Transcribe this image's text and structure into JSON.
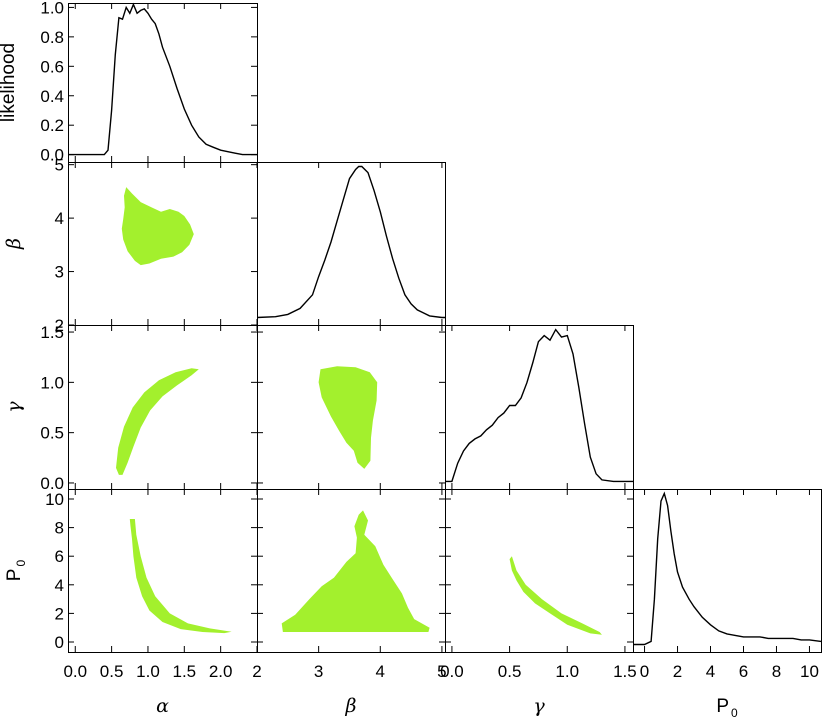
{
  "chart_data": {
    "type": "corner",
    "parameters": [
      {
        "key": "alpha",
        "label": "α",
        "range": [
          -0.1,
          2.5
        ],
        "ticks": [
          {
            "v": 0.0,
            "t": "0.0"
          },
          {
            "v": 0.5,
            "t": "0.5"
          },
          {
            "v": 1.0,
            "t": "1.0"
          },
          {
            "v": 1.5,
            "t": "1.5"
          },
          {
            "v": 2.0,
            "t": "2.0"
          }
        ]
      },
      {
        "key": "beta",
        "label": "β",
        "range": [
          2.0,
          5.05
        ],
        "ticks": [
          {
            "v": 3,
            "t": "3"
          },
          {
            "v": 4,
            "t": "4"
          },
          {
            "v": 5,
            "t": "5"
          },
          {
            "v": 2,
            "t": "2"
          }
        ]
      },
      {
        "key": "gamma",
        "label": "γ",
        "range": [
          -0.06,
          1.57
        ],
        "ticks": [
          {
            "v": 0.0,
            "t": "0.0"
          },
          {
            "v": 0.5,
            "t": "0.5"
          },
          {
            "v": 1.0,
            "t": "1.0"
          },
          {
            "v": 1.5,
            "t": "1.5"
          }
        ]
      },
      {
        "key": "P0",
        "label": "P",
        "label_sub": "0",
        "range": [
          -0.7,
          10.7
        ],
        "ticks": [
          {
            "v": 0,
            "t": "0"
          },
          {
            "v": 2,
            "t": "2"
          },
          {
            "v": 4,
            "t": "4"
          },
          {
            "v": 6,
            "t": "6"
          },
          {
            "v": 8,
            "t": "8"
          },
          {
            "v": 10,
            "t": "10"
          }
        ]
      }
    ],
    "likelihood_axis": {
      "label": "likelihood",
      "range": [
        -0.05,
        1.03
      ],
      "ticks": [
        {
          "v": 0.0,
          "t": "0.0"
        },
        {
          "v": 0.2,
          "t": "0.2"
        },
        {
          "v": 0.4,
          "t": "0.4"
        },
        {
          "v": 0.6,
          "t": "0.6"
        },
        {
          "v": 0.8,
          "t": "0.8"
        },
        {
          "v": 1.0,
          "t": "1.0"
        }
      ]
    },
    "marginals": [
      {
        "param": "alpha",
        "x": [
          -0.1,
          0.4,
          0.45,
          0.5,
          0.55,
          0.6,
          0.65,
          0.7,
          0.75,
          0.8,
          0.85,
          0.9,
          0.95,
          1.0,
          1.05,
          1.1,
          1.15,
          1.2,
          1.3,
          1.4,
          1.5,
          1.6,
          1.7,
          1.8,
          1.9,
          2.0,
          2.1,
          2.2,
          2.3,
          2.5
        ],
        "y": [
          0.0,
          0.0,
          0.03,
          0.3,
          0.68,
          0.93,
          0.92,
          1.0,
          0.96,
          1.02,
          0.96,
          0.98,
          0.99,
          0.96,
          0.92,
          0.89,
          0.82,
          0.73,
          0.6,
          0.45,
          0.31,
          0.2,
          0.12,
          0.07,
          0.05,
          0.03,
          0.02,
          0.01,
          0.0,
          0.0
        ]
      },
      {
        "param": "beta",
        "x": [
          2.0,
          2.3,
          2.5,
          2.7,
          2.9,
          3.0,
          3.1,
          3.2,
          3.3,
          3.4,
          3.5,
          3.6,
          3.65,
          3.7,
          3.8,
          3.9,
          4.0,
          4.1,
          4.2,
          4.3,
          4.4,
          4.5,
          4.6,
          4.7,
          4.8,
          5.0,
          5.05
        ],
        "y": [
          0.0,
          0.005,
          0.02,
          0.06,
          0.15,
          0.27,
          0.38,
          0.5,
          0.64,
          0.78,
          0.92,
          0.98,
          1.0,
          1.0,
          0.96,
          0.84,
          0.7,
          0.54,
          0.39,
          0.26,
          0.15,
          0.09,
          0.05,
          0.03,
          0.01,
          0.0,
          0.0
        ]
      },
      {
        "param": "gamma",
        "x": [
          -0.06,
          0.0,
          0.05,
          0.1,
          0.15,
          0.2,
          0.25,
          0.3,
          0.35,
          0.4,
          0.45,
          0.5,
          0.55,
          0.6,
          0.65,
          0.7,
          0.75,
          0.8,
          0.85,
          0.9,
          0.95,
          1.0,
          1.05,
          1.1,
          1.15,
          1.2,
          1.25,
          1.3,
          1.4,
          1.57
        ],
        "y": [
          0.0,
          0.0,
          0.12,
          0.2,
          0.25,
          0.28,
          0.3,
          0.34,
          0.37,
          0.42,
          0.45,
          0.5,
          0.5,
          0.55,
          0.65,
          0.78,
          0.92,
          0.96,
          0.93,
          1.0,
          0.95,
          0.96,
          0.84,
          0.62,
          0.38,
          0.16,
          0.05,
          0.01,
          0.0,
          0.0
        ]
      },
      {
        "param": "P0",
        "x": [
          -0.7,
          0.0,
          0.4,
          0.6,
          0.8,
          1.0,
          1.2,
          1.4,
          1.6,
          1.8,
          2.0,
          2.3,
          2.7,
          3.0,
          3.5,
          4.0,
          4.5,
          5.0,
          5.5,
          6.0,
          6.5,
          7.0,
          7.5,
          8.0,
          8.5,
          9.0,
          9.5,
          10.0,
          10.7
        ],
        "y": [
          0.0,
          0.0,
          0.02,
          0.3,
          0.7,
          0.95,
          1.0,
          0.92,
          0.75,
          0.6,
          0.48,
          0.38,
          0.3,
          0.25,
          0.18,
          0.13,
          0.09,
          0.07,
          0.06,
          0.05,
          0.05,
          0.05,
          0.04,
          0.04,
          0.04,
          0.04,
          0.03,
          0.03,
          0.02
        ]
      }
    ],
    "contours": [
      {
        "x": "alpha",
        "y": "beta",
        "color": "#a3f02d",
        "points": [
          [
            0.7,
            4.58
          ],
          [
            0.78,
            4.46
          ],
          [
            0.9,
            4.3
          ],
          [
            1.05,
            4.2
          ],
          [
            1.18,
            4.12
          ],
          [
            1.3,
            4.17
          ],
          [
            1.42,
            4.12
          ],
          [
            1.5,
            4.04
          ],
          [
            1.58,
            3.88
          ],
          [
            1.63,
            3.7
          ],
          [
            1.57,
            3.5
          ],
          [
            1.47,
            3.36
          ],
          [
            1.35,
            3.28
          ],
          [
            1.18,
            3.24
          ],
          [
            1.02,
            3.15
          ],
          [
            0.9,
            3.12
          ],
          [
            0.82,
            3.2
          ],
          [
            0.72,
            3.38
          ],
          [
            0.66,
            3.6
          ],
          [
            0.64,
            3.8
          ],
          [
            0.66,
            3.98
          ],
          [
            0.68,
            4.2
          ],
          [
            0.67,
            4.42
          ]
        ]
      },
      {
        "x": "alpha",
        "y": "gamma",
        "color": "#a3f02d",
        "points": [
          [
            0.6,
            0.08
          ],
          [
            0.56,
            0.15
          ],
          [
            0.59,
            0.35
          ],
          [
            0.67,
            0.56
          ],
          [
            0.79,
            0.75
          ],
          [
            0.95,
            0.9
          ],
          [
            1.15,
            1.02
          ],
          [
            1.38,
            1.1
          ],
          [
            1.6,
            1.14
          ],
          [
            1.7,
            1.13
          ],
          [
            1.6,
            1.07
          ],
          [
            1.4,
            0.97
          ],
          [
            1.2,
            0.86
          ],
          [
            1.03,
            0.72
          ],
          [
            0.9,
            0.55
          ],
          [
            0.8,
            0.36
          ],
          [
            0.72,
            0.2
          ],
          [
            0.65,
            0.08
          ]
        ]
      },
      {
        "x": "beta",
        "y": "gamma",
        "color": "#a3f02d",
        "points": [
          [
            3.03,
            1.13
          ],
          [
            3.3,
            1.16
          ],
          [
            3.6,
            1.15
          ],
          [
            3.83,
            1.1
          ],
          [
            3.95,
            1.0
          ],
          [
            3.94,
            0.82
          ],
          [
            3.88,
            0.62
          ],
          [
            3.85,
            0.45
          ],
          [
            3.84,
            0.22
          ],
          [
            3.74,
            0.14
          ],
          [
            3.63,
            0.2
          ],
          [
            3.57,
            0.32
          ],
          [
            3.45,
            0.4
          ],
          [
            3.33,
            0.52
          ],
          [
            3.2,
            0.66
          ],
          [
            3.05,
            0.85
          ],
          [
            3.0,
            1.0
          ]
        ]
      },
      {
        "x": "gamma",
        "y": "P0",
        "color": "#a3f02d",
        "points": [
          [
            0.52,
            6.0
          ],
          [
            0.56,
            5.0
          ],
          [
            0.64,
            4.0
          ],
          [
            0.78,
            3.0
          ],
          [
            0.95,
            2.0
          ],
          [
            1.13,
            1.3
          ],
          [
            1.28,
            0.7
          ],
          [
            1.3,
            0.5
          ],
          [
            1.2,
            0.6
          ],
          [
            1.0,
            1.2
          ],
          [
            0.85,
            2.0
          ],
          [
            0.72,
            2.7
          ],
          [
            0.62,
            3.5
          ],
          [
            0.56,
            4.3
          ],
          [
            0.52,
            5.0
          ],
          [
            0.5,
            5.8
          ]
        ]
      },
      {
        "x": "alpha",
        "y": "P0",
        "color": "#a3f02d",
        "points": [
          [
            0.75,
            8.6
          ],
          [
            0.82,
            8.6
          ],
          [
            0.84,
            7.5
          ],
          [
            0.9,
            6.0
          ],
          [
            0.98,
            4.5
          ],
          [
            1.1,
            3.2
          ],
          [
            1.3,
            2.0
          ],
          [
            1.55,
            1.3
          ],
          [
            1.85,
            0.95
          ],
          [
            2.15,
            0.72
          ],
          [
            2.05,
            0.62
          ],
          [
            1.75,
            0.7
          ],
          [
            1.45,
            0.9
          ],
          [
            1.2,
            1.4
          ],
          [
            1.02,
            2.2
          ],
          [
            0.92,
            3.2
          ],
          [
            0.84,
            4.5
          ],
          [
            0.8,
            6.0
          ],
          [
            0.78,
            7.2
          ],
          [
            0.76,
            8.1
          ]
        ]
      },
      {
        "x": "beta",
        "y": "P0",
        "color": "#a3f02d",
        "points": [
          [
            2.4,
            1.3
          ],
          [
            2.62,
            1.9
          ],
          [
            2.85,
            3.0
          ],
          [
            3.05,
            3.9
          ],
          [
            3.25,
            4.5
          ],
          [
            3.45,
            5.6
          ],
          [
            3.6,
            6.2
          ],
          [
            3.62,
            7.3
          ],
          [
            3.58,
            8.1
          ],
          [
            3.65,
            8.9
          ],
          [
            3.72,
            9.2
          ],
          [
            3.8,
            8.5
          ],
          [
            3.74,
            7.5
          ],
          [
            3.92,
            6.7
          ],
          [
            4.05,
            5.4
          ],
          [
            4.2,
            4.4
          ],
          [
            4.35,
            3.4
          ],
          [
            4.45,
            2.4
          ],
          [
            4.55,
            1.6
          ],
          [
            4.8,
            1.0
          ],
          [
            4.78,
            0.7
          ],
          [
            2.42,
            0.7
          ]
        ]
      }
    ]
  }
}
